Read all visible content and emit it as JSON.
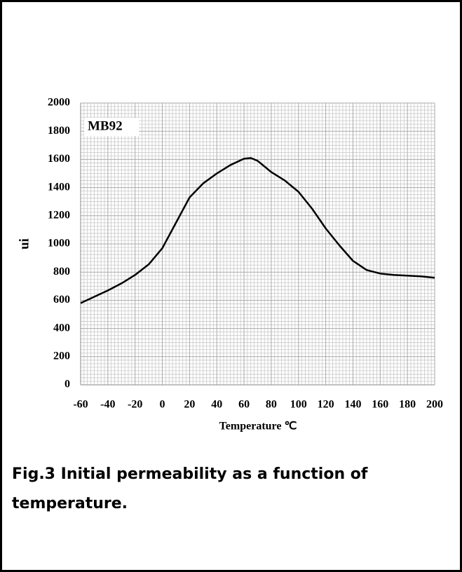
{
  "chart_data": {
    "type": "line",
    "annotation": "MB92",
    "ylabel": "ui",
    "xlabel": "Temperature ℃",
    "caption": "Fig.3 Initial permeability as a function of temperature.",
    "x": [
      -60,
      -50,
      -40,
      -30,
      -20,
      -10,
      0,
      10,
      20,
      30,
      40,
      50,
      60,
      65,
      70,
      80,
      90,
      100,
      110,
      120,
      130,
      140,
      150,
      160,
      170,
      180,
      190,
      200
    ],
    "series": [
      {
        "name": "MB92",
        "color": "#000000",
        "values": [
          580,
          625,
          670,
          720,
          780,
          855,
          970,
          1150,
          1330,
          1430,
          1500,
          1560,
          1605,
          1610,
          1590,
          1510,
          1450,
          1370,
          1250,
          1110,
          990,
          880,
          815,
          790,
          780,
          775,
          770,
          760
        ]
      }
    ],
    "xlim": [
      -60,
      200
    ],
    "xticks": [
      -60,
      -40,
      -20,
      0,
      20,
      40,
      60,
      80,
      100,
      120,
      140,
      160,
      180,
      200
    ],
    "ylim": [
      0,
      2000
    ],
    "yticks": [
      0,
      200,
      400,
      600,
      800,
      1000,
      1200,
      1400,
      1600,
      1800,
      2000
    ],
    "grid": true
  }
}
